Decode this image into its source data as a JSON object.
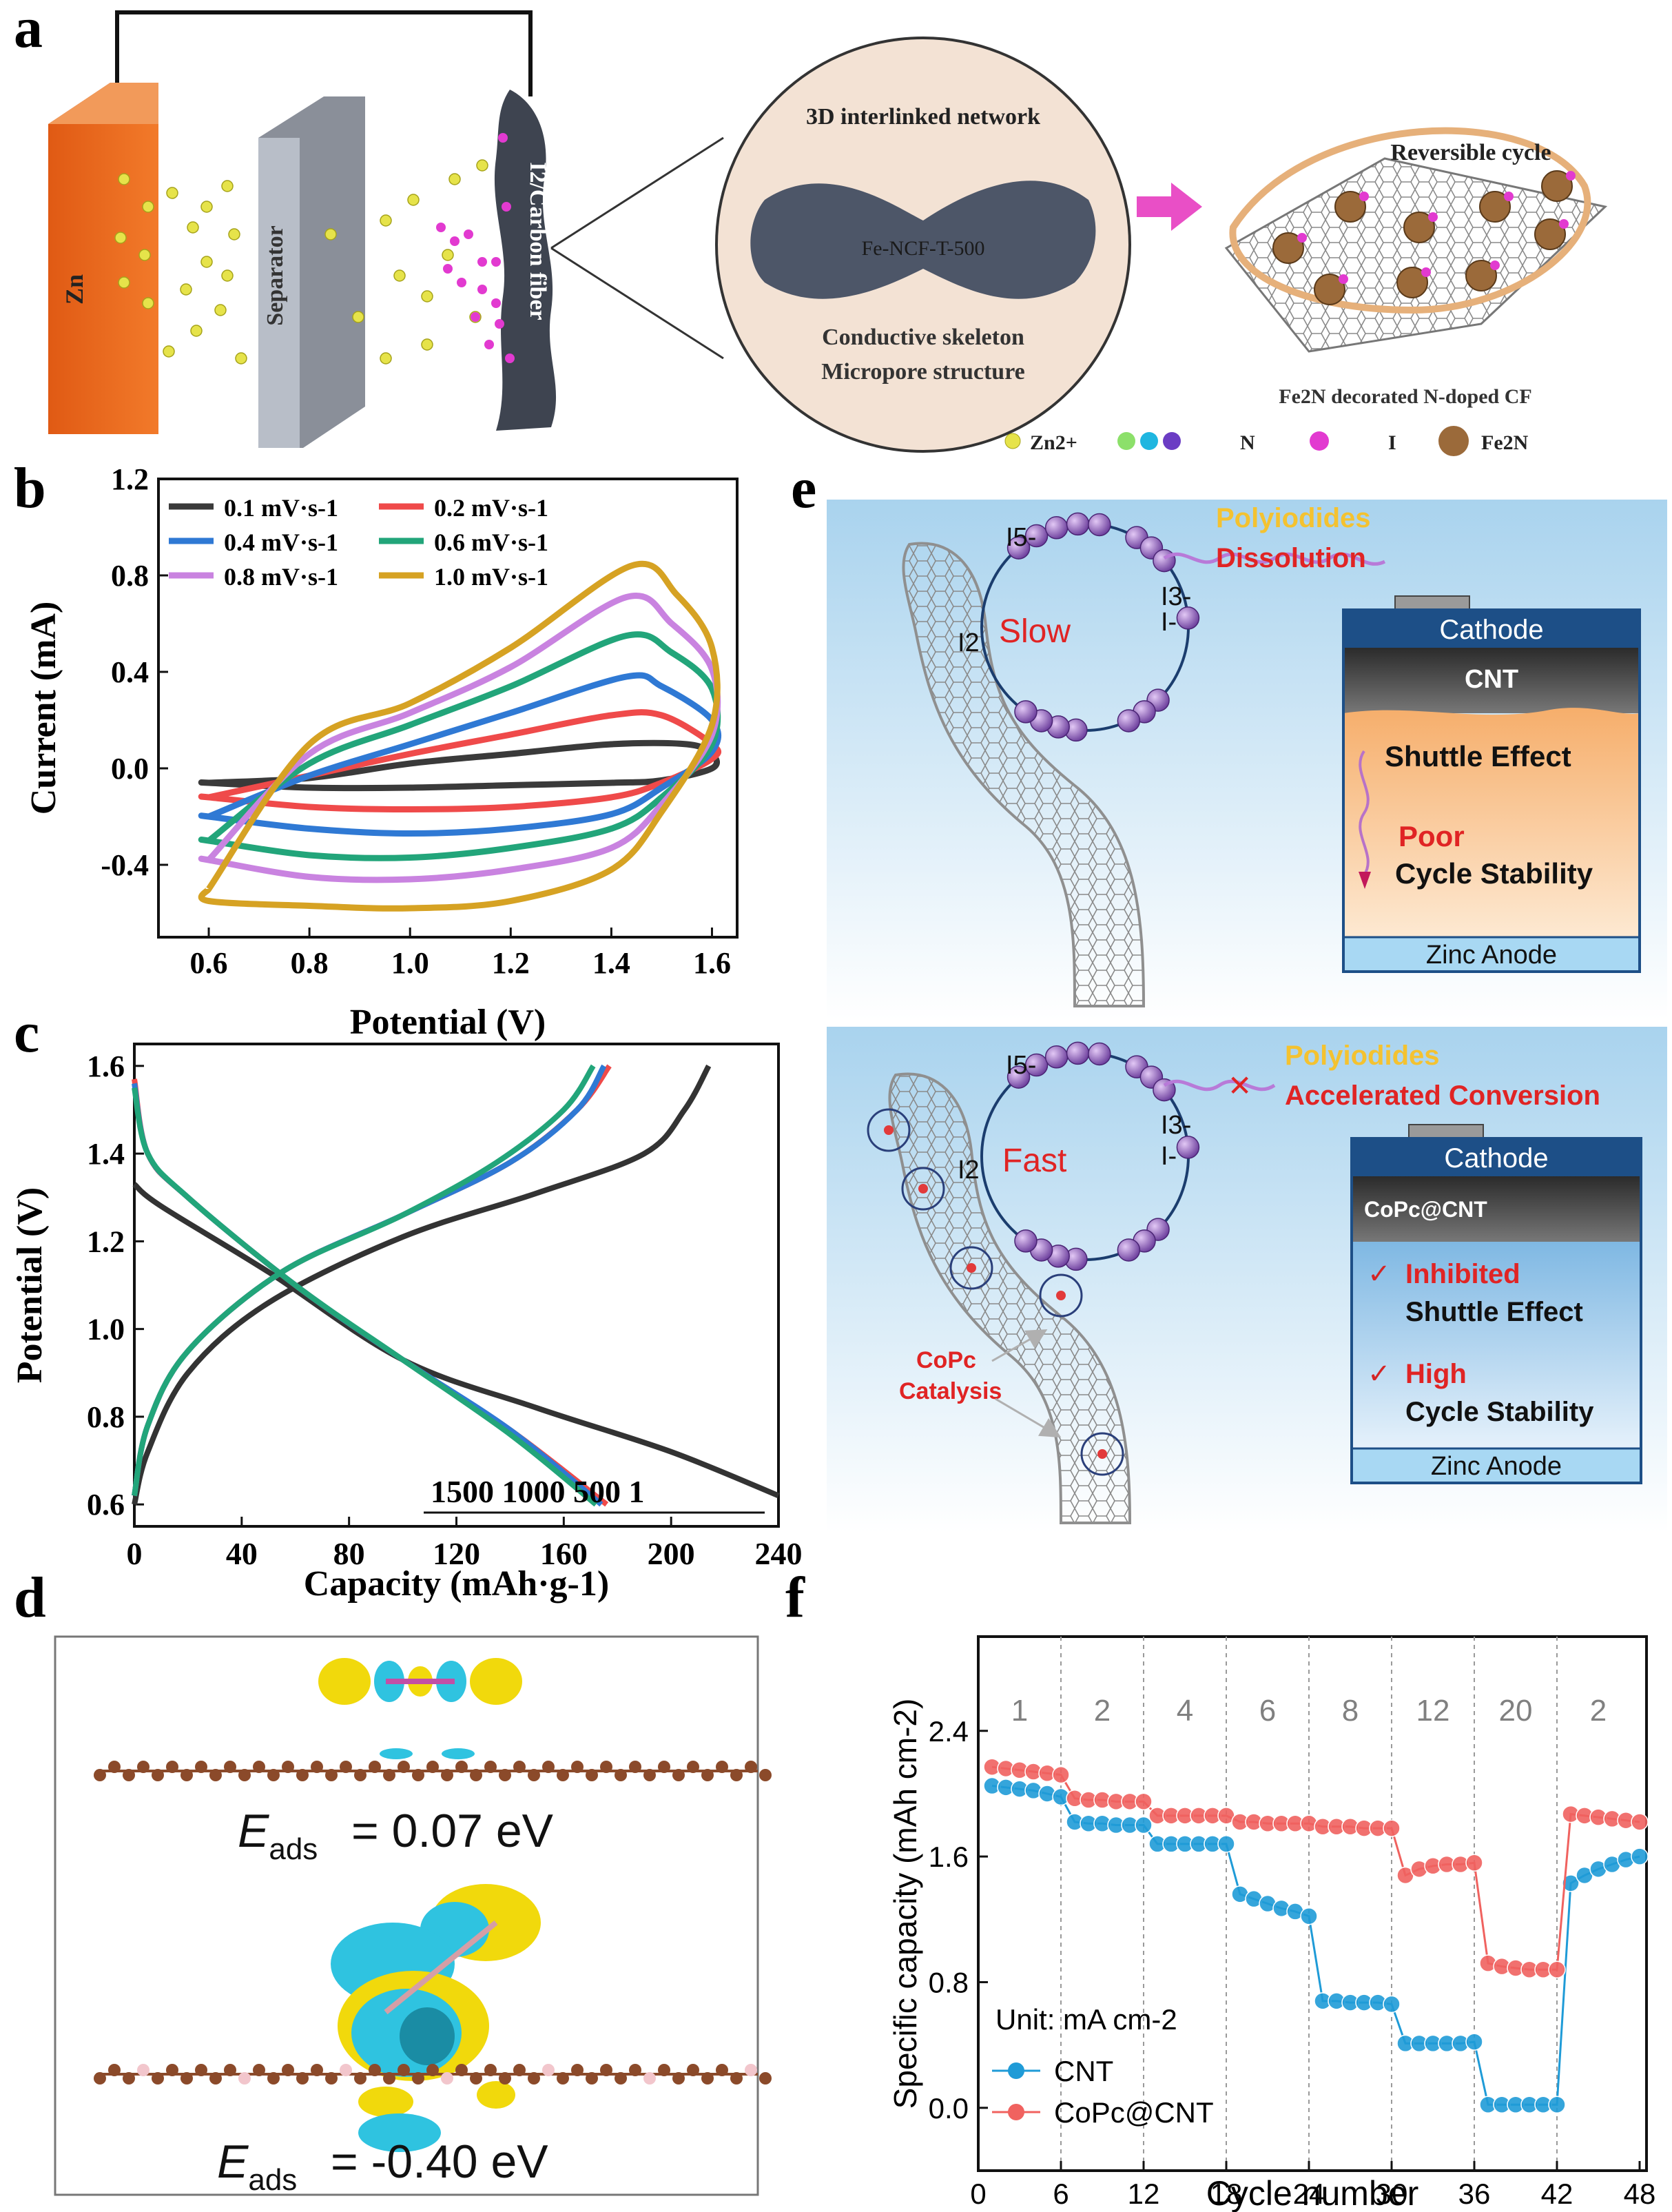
{
  "panel_labels": {
    "a": "a",
    "b": "b",
    "c": "c",
    "d": "d",
    "e": "e",
    "f": "f"
  },
  "panel_a": {
    "zn_label": "Zn",
    "separator_label": "Separator",
    "cathode_label": "I2/Carbon fiber",
    "network_title": "3D interlinked network",
    "network_material": "Fe-NCF-T-500",
    "network_line1": "Conductive skeleton",
    "network_line2": "Micropore structure",
    "cycle_title": "Reversible cycle",
    "cycle_caption": "Fe2N decorated N-doped CF",
    "legend": {
      "zn": "Zn2+",
      "n": "N",
      "i": "I",
      "fe2n": "Fe2N"
    }
  },
  "panel_e": {
    "top": {
      "i5": "I5-",
      "i3": "I3-",
      "i2": "I2",
      "i_minus": "I-",
      "speed": "Slow",
      "poly_line1": "Polyiodides",
      "poly_line2": "Dissolution",
      "cathode": "Cathode",
      "layer": "CNT",
      "shuttle": "Shuttle Effect",
      "poor": "Poor",
      "cycle_stability": "Cycle Stability",
      "anode": "Zinc Anode"
    },
    "bottom": {
      "i5": "I5-",
      "i3": "I3-",
      "i2": "I2",
      "i_minus": "I-",
      "speed": "Fast",
      "poly_line1": "Polyiodides",
      "poly_line2": "Accelerated Conversion",
      "cathode": "Cathode",
      "layer": "CoPc@CNT",
      "check1_red": "Inhibited",
      "check1_black": "Shuttle Effect",
      "check2_red": "High",
      "check2_black": "Cycle Stability",
      "anode": "Zinc Anode",
      "catalysis1": "CoPc",
      "catalysis2": "Catalysis"
    }
  },
  "panel_d": {
    "eads_top": "= 0.07 eV",
    "eads_bottom": "= -0.40 eV",
    "e_symbol": "E",
    "subscript": "ads"
  },
  "colors": {
    "cnt_blue": "#1f9bd7",
    "copc_red": "#f0625f",
    "panel_e_bg": "#a9d3ee"
  },
  "chart_data": [
    {
      "id": "b",
      "type": "line",
      "title": "",
      "xlabel": "Potential (V)",
      "ylabel": "Current (mA)",
      "xlim": [
        0.5,
        1.65
      ],
      "ylim": [
        -0.7,
        1.2
      ],
      "xticks": [
        "0.6",
        "0.8",
        "1.0",
        "1.2",
        "1.4",
        "1.6"
      ],
      "yticks": [
        "-0.4",
        "0.0",
        "0.4",
        "0.8",
        "1.2"
      ],
      "legend": [
        "0.1 mV·s-1",
        "0.2 mV·s-1",
        "0.4 mV·s-1",
        "0.6 mV·s-1",
        "0.8 mV·s-1",
        "1.0 mV·s-1"
      ],
      "series": [
        {
          "name": "0.1 mV·s-1",
          "color": "#3a3a3a",
          "upper": [
            [
              0.6,
              -0.06
            ],
            [
              0.8,
              -0.04
            ],
            [
              1.0,
              0.02
            ],
            [
              1.2,
              0.06
            ],
            [
              1.4,
              0.1
            ],
            [
              1.55,
              0.1
            ],
            [
              1.6,
              0.06
            ]
          ],
          "lower": [
            [
              1.6,
              0.0
            ],
            [
              1.5,
              -0.05
            ],
            [
              1.4,
              -0.06
            ],
            [
              1.2,
              -0.07
            ],
            [
              1.0,
              -0.08
            ],
            [
              0.8,
              -0.08
            ],
            [
              0.6,
              -0.06
            ]
          ]
        },
        {
          "name": "0.2 mV·s-1",
          "color": "#ef4a4a",
          "upper": [
            [
              0.6,
              -0.12
            ],
            [
              0.8,
              -0.03
            ],
            [
              1.0,
              0.06
            ],
            [
              1.2,
              0.14
            ],
            [
              1.4,
              0.22
            ],
            [
              1.5,
              0.22
            ],
            [
              1.6,
              0.1
            ]
          ],
          "lower": [
            [
              1.6,
              0.04
            ],
            [
              1.5,
              -0.06
            ],
            [
              1.4,
              -0.12
            ],
            [
              1.2,
              -0.16
            ],
            [
              1.0,
              -0.17
            ],
            [
              0.8,
              -0.16
            ],
            [
              0.6,
              -0.12
            ]
          ]
        },
        {
          "name": "0.4 mV·s-1",
          "color": "#2f79d4",
          "upper": [
            [
              0.6,
              -0.2
            ],
            [
              0.8,
              -0.03
            ],
            [
              1.0,
              0.1
            ],
            [
              1.2,
              0.23
            ],
            [
              1.43,
              0.38
            ],
            [
              1.5,
              0.34
            ],
            [
              1.6,
              0.2
            ]
          ],
          "lower": [
            [
              1.6,
              0.07
            ],
            [
              1.5,
              -0.08
            ],
            [
              1.4,
              -0.19
            ],
            [
              1.2,
              -0.25
            ],
            [
              1.0,
              -0.27
            ],
            [
              0.8,
              -0.25
            ],
            [
              0.6,
              -0.2
            ]
          ]
        },
        {
          "name": "0.6 mV·s-1",
          "color": "#22a57a",
          "upper": [
            [
              0.6,
              -0.3
            ],
            [
              0.8,
              0.02
            ],
            [
              1.0,
              0.18
            ],
            [
              1.2,
              0.34
            ],
            [
              1.43,
              0.55
            ],
            [
              1.52,
              0.48
            ],
            [
              1.6,
              0.33
            ]
          ],
          "lower": [
            [
              1.6,
              0.1
            ],
            [
              1.5,
              -0.12
            ],
            [
              1.4,
              -0.25
            ],
            [
              1.2,
              -0.33
            ],
            [
              1.0,
              -0.37
            ],
            [
              0.8,
              -0.36
            ],
            [
              0.6,
              -0.3
            ]
          ]
        },
        {
          "name": "0.8 mV·s-1",
          "color": "#c983e0",
          "upper": [
            [
              0.6,
              -0.38
            ],
            [
              0.8,
              0.06
            ],
            [
              1.0,
              0.23
            ],
            [
              1.2,
              0.42
            ],
            [
              1.43,
              0.71
            ],
            [
              1.52,
              0.6
            ],
            [
              1.6,
              0.41
            ]
          ],
          "lower": [
            [
              1.6,
              0.14
            ],
            [
              1.5,
              -0.15
            ],
            [
              1.4,
              -0.33
            ],
            [
              1.2,
              -0.42
            ],
            [
              1.0,
              -0.46
            ],
            [
              0.8,
              -0.45
            ],
            [
              0.6,
              -0.38
            ]
          ]
        },
        {
          "name": "1.0 mV·s-1",
          "color": "#d6a223",
          "upper": [
            [
              0.6,
              -0.5
            ],
            [
              0.8,
              0.1
            ],
            [
              1.0,
              0.27
            ],
            [
              1.2,
              0.5
            ],
            [
              1.44,
              0.84
            ],
            [
              1.53,
              0.72
            ],
            [
              1.6,
              0.5
            ]
          ],
          "lower": [
            [
              1.6,
              0.18
            ],
            [
              1.5,
              -0.18
            ],
            [
              1.4,
              -0.42
            ],
            [
              1.2,
              -0.55
            ],
            [
              1.0,
              -0.58
            ],
            [
              0.8,
              -0.57
            ],
            [
              0.6,
              -0.55
            ]
          ]
        }
      ]
    },
    {
      "id": "c",
      "type": "line",
      "title": "",
      "xlabel": "Capacity (mAh·g-1)",
      "ylabel": "Potential (V)",
      "xlim": [
        0,
        240
      ],
      "ylim": [
        0.55,
        1.65
      ],
      "xticks": [
        "0",
        "40",
        "80",
        "120",
        "160",
        "200",
        "240"
      ],
      "yticks": [
        "0.6",
        "0.8",
        "1.0",
        "1.2",
        "1.4",
        "1.6"
      ],
      "annotation": "1500  1000  500   1",
      "series": [
        {
          "name": "1",
          "color": "#333333",
          "charge": [
            [
              0,
              0.6
            ],
            [
              5,
              0.72
            ],
            [
              20,
              0.9
            ],
            [
              50,
              1.06
            ],
            [
              100,
              1.21
            ],
            [
              150,
              1.31
            ],
            [
              190,
              1.4
            ],
            [
              205,
              1.5
            ],
            [
              214,
              1.6
            ]
          ],
          "discharge": [
            [
              0,
              1.33
            ],
            [
              10,
              1.28
            ],
            [
              50,
              1.13
            ],
            [
              100,
              0.93
            ],
            [
              150,
              0.82
            ],
            [
              200,
              0.72
            ],
            [
              240,
              0.62
            ]
          ]
        },
        {
          "name": "500",
          "color": "#ef4a4a",
          "charge": [
            [
              0,
              0.62
            ],
            [
              5,
              0.78
            ],
            [
              20,
              0.95
            ],
            [
              55,
              1.13
            ],
            [
              100,
              1.26
            ],
            [
              140,
              1.38
            ],
            [
              165,
              1.5
            ],
            [
              177,
              1.6
            ]
          ],
          "discharge": [
            [
              0,
              1.57
            ],
            [
              5,
              1.4
            ],
            [
              20,
              1.3
            ],
            [
              60,
              1.1
            ],
            [
              100,
              0.93
            ],
            [
              140,
              0.77
            ],
            [
              176,
              0.6
            ]
          ]
        },
        {
          "name": "1000",
          "color": "#2f79d4",
          "charge": [
            [
              0,
              0.62
            ],
            [
              5,
              0.78
            ],
            [
              20,
              0.95
            ],
            [
              55,
              1.13
            ],
            [
              100,
              1.26
            ],
            [
              140,
              1.38
            ],
            [
              165,
              1.5
            ],
            [
              175,
              1.6
            ]
          ],
          "discharge": [
            [
              0,
              1.56
            ],
            [
              5,
              1.4
            ],
            [
              20,
              1.3
            ],
            [
              60,
              1.1
            ],
            [
              100,
              0.93
            ],
            [
              140,
              0.77
            ],
            [
              174,
              0.6
            ]
          ]
        },
        {
          "name": "1500",
          "color": "#22a57a",
          "charge": [
            [
              0,
              0.62
            ],
            [
              5,
              0.78
            ],
            [
              20,
              0.95
            ],
            [
              55,
              1.13
            ],
            [
              100,
              1.26
            ],
            [
              135,
              1.38
            ],
            [
              160,
              1.5
            ],
            [
              171,
              1.6
            ]
          ],
          "discharge": [
            [
              0,
              1.55
            ],
            [
              5,
              1.4
            ],
            [
              20,
              1.3
            ],
            [
              60,
              1.1
            ],
            [
              100,
              0.93
            ],
            [
              140,
              0.76
            ],
            [
              172,
              0.6
            ]
          ]
        }
      ]
    },
    {
      "id": "f",
      "type": "scatter",
      "title": "",
      "xlabel": "Cycle number",
      "ylabel": "Specific capacity (mAh cm-2)",
      "xlim": [
        0,
        48.5
      ],
      "ylim": [
        -0.4,
        3.0
      ],
      "xticks": [
        "0",
        "6",
        "12",
        "18",
        "24",
        "30",
        "36",
        "42",
        "48"
      ],
      "yticks": [
        "0.0",
        "0.8",
        "1.6",
        "2.4"
      ],
      "rate_labels": [
        "1",
        "2",
        "4",
        "6",
        "8",
        "12",
        "20",
        "2"
      ],
      "unit_label": "Unit: mA cm-2",
      "legend": [
        "CNT",
        "CoPc@CNT"
      ],
      "series": [
        {
          "name": "CNT",
          "color": "#1f9bd7",
          "values": [
            2.05,
            2.04,
            2.03,
            2.02,
            2.0,
            1.98,
            1.82,
            1.81,
            1.81,
            1.8,
            1.8,
            1.8,
            1.68,
            1.68,
            1.68,
            1.68,
            1.68,
            1.68,
            1.36,
            1.33,
            1.3,
            1.27,
            1.25,
            1.22,
            0.68,
            0.68,
            0.67,
            0.67,
            0.67,
            0.66,
            0.41,
            0.41,
            0.41,
            0.41,
            0.41,
            0.42,
            0.02,
            0.02,
            0.02,
            0.02,
            0.02,
            0.02,
            1.43,
            1.48,
            1.52,
            1.55,
            1.58,
            1.6
          ]
        },
        {
          "name": "CoPc@CNT",
          "color": "#f0625f",
          "values": [
            2.17,
            2.16,
            2.15,
            2.14,
            2.13,
            2.12,
            1.97,
            1.96,
            1.96,
            1.95,
            1.95,
            1.95,
            1.86,
            1.86,
            1.86,
            1.86,
            1.86,
            1.86,
            1.82,
            1.82,
            1.81,
            1.81,
            1.81,
            1.81,
            1.79,
            1.79,
            1.79,
            1.78,
            1.78,
            1.78,
            1.48,
            1.52,
            1.54,
            1.55,
            1.55,
            1.56,
            0.92,
            0.9,
            0.89,
            0.88,
            0.88,
            0.88,
            1.87,
            1.86,
            1.85,
            1.84,
            1.83,
            1.82
          ]
        }
      ]
    }
  ]
}
